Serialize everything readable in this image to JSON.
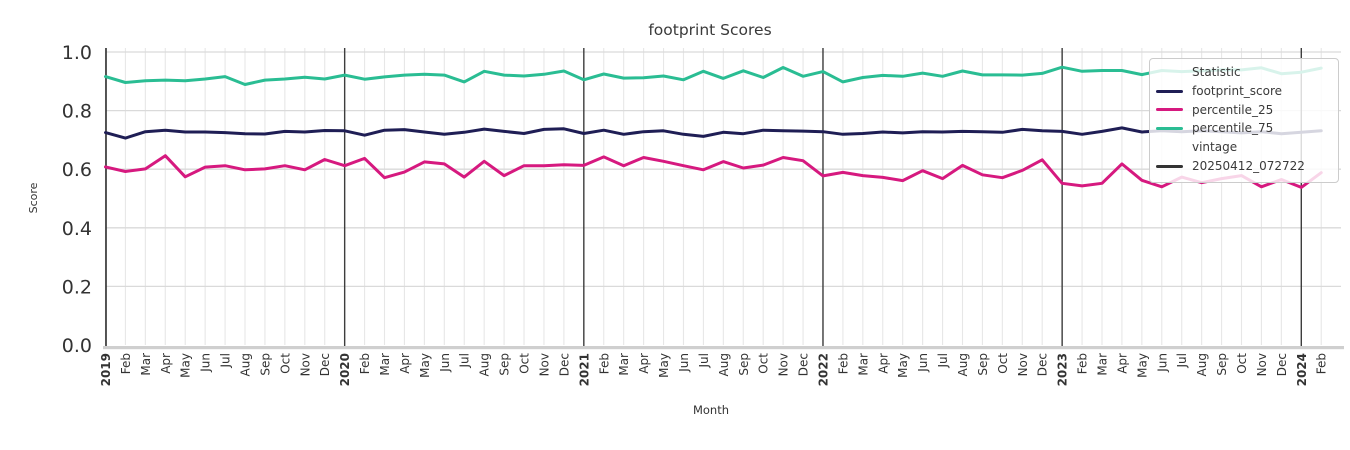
{
  "title": "footprint Scores",
  "axes": {
    "x_label": "Month",
    "y_label": "Score",
    "y_ticks": [
      "0.0",
      "0.2",
      "0.4",
      "0.6",
      "0.8",
      "1.0"
    ]
  },
  "legend": {
    "title": "Statistic",
    "items": [
      {
        "label": "footprint_score",
        "color": "#1f1e55"
      },
      {
        "label": "percentile_25",
        "color": "#d6197f"
      },
      {
        "label": "percentile_75",
        "color": "#2abd93"
      }
    ],
    "subtitle": "vintage",
    "vintage_items": [
      {
        "label": "20250412_072722",
        "color": "#333333"
      }
    ]
  },
  "chart_data": {
    "type": "line",
    "title": "footprint Scores",
    "xlabel": "Month",
    "ylabel": "Score",
    "ylim": [
      0.0,
      1.0
    ],
    "grid": true,
    "legend_position": "upper right",
    "x": [
      "2019",
      "Feb",
      "Mar",
      "Apr",
      "May",
      "Jun",
      "Jul",
      "Aug",
      "Sep",
      "Oct",
      "Nov",
      "Dec",
      "2020",
      "Feb",
      "Mar",
      "Apr",
      "May",
      "Jun",
      "Jul",
      "Aug",
      "Sep",
      "Oct",
      "Nov",
      "Dec",
      "2021",
      "Feb",
      "Mar",
      "Apr",
      "May",
      "Jun",
      "Jul",
      "Aug",
      "Sep",
      "Oct",
      "Nov",
      "Dec",
      "2022",
      "Feb",
      "Mar",
      "Apr",
      "May",
      "Jun",
      "Jul",
      "Aug",
      "Sep",
      "Oct",
      "Nov",
      "Dec",
      "2023",
      "Feb",
      "Mar",
      "Apr",
      "May",
      "Jun",
      "Jul",
      "Aug",
      "Sep",
      "Oct",
      "Nov",
      "Dec",
      "2024",
      "Feb"
    ],
    "year_line_indices": [
      12,
      24,
      36,
      48,
      60
    ],
    "series": [
      {
        "name": "footprint_score",
        "color": "#1f1e55",
        "values": [
          0.725,
          0.706,
          0.728,
          0.733,
          0.727,
          0.727,
          0.725,
          0.721,
          0.72,
          0.729,
          0.727,
          0.732,
          0.731,
          0.716,
          0.733,
          0.735,
          0.727,
          0.719,
          0.726,
          0.737,
          0.729,
          0.722,
          0.736,
          0.738,
          0.722,
          0.733,
          0.719,
          0.728,
          0.731,
          0.719,
          0.712,
          0.726,
          0.721,
          0.733,
          0.731,
          0.73,
          0.728,
          0.719,
          0.722,
          0.727,
          0.724,
          0.728,
          0.727,
          0.729,
          0.728,
          0.726,
          0.736,
          0.731,
          0.729,
          0.719,
          0.729,
          0.741,
          0.727,
          0.731,
          0.728,
          0.731,
          0.728,
          0.724,
          0.728,
          0.721,
          0.726,
          0.731
        ]
      },
      {
        "name": "percentile_25",
        "color": "#d6197f",
        "values": [
          0.608,
          0.592,
          0.601,
          0.646,
          0.574,
          0.607,
          0.612,
          0.598,
          0.601,
          0.612,
          0.598,
          0.633,
          0.612,
          0.637,
          0.571,
          0.59,
          0.625,
          0.618,
          0.573,
          0.627,
          0.578,
          0.612,
          0.612,
          0.615,
          0.613,
          0.642,
          0.612,
          0.64,
          0.627,
          0.612,
          0.598,
          0.626,
          0.604,
          0.614,
          0.64,
          0.629,
          0.577,
          0.589,
          0.578,
          0.572,
          0.561,
          0.595,
          0.568,
          0.613,
          0.581,
          0.571,
          0.596,
          0.632,
          0.552,
          0.543,
          0.552,
          0.618,
          0.562,
          0.54,
          0.573,
          0.554,
          0.568,
          0.578,
          0.54,
          0.565,
          0.538,
          0.588
        ]
      },
      {
        "name": "percentile_75",
        "color": "#2abd93",
        "values": [
          0.916,
          0.896,
          0.902,
          0.904,
          0.902,
          0.908,
          0.916,
          0.889,
          0.904,
          0.908,
          0.914,
          0.908,
          0.921,
          0.907,
          0.915,
          0.921,
          0.924,
          0.921,
          0.898,
          0.934,
          0.921,
          0.918,
          0.924,
          0.935,
          0.905,
          0.925,
          0.911,
          0.912,
          0.918,
          0.905,
          0.934,
          0.91,
          0.936,
          0.913,
          0.947,
          0.917,
          0.933,
          0.898,
          0.913,
          0.92,
          0.917,
          0.928,
          0.917,
          0.935,
          0.922,
          0.922,
          0.921,
          0.927,
          0.948,
          0.934,
          0.937,
          0.937,
          0.923,
          0.937,
          0.933,
          0.936,
          0.939,
          0.939,
          0.946,
          0.926,
          0.931,
          0.945
        ]
      }
    ]
  }
}
